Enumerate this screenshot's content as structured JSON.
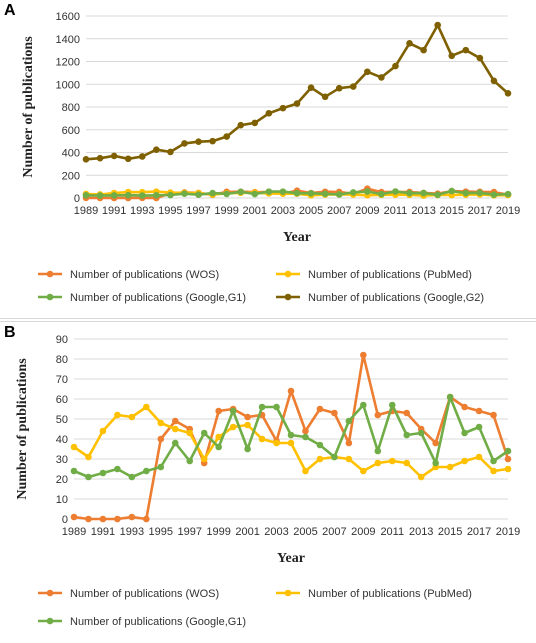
{
  "panels": [
    {
      "letter": "A",
      "chart_data": {
        "type": "line",
        "title": "",
        "xlabel": "Year",
        "ylabel": "Number of publications",
        "ylim": [
          0,
          1600
        ],
        "yticks": [
          0,
          200,
          400,
          600,
          800,
          1000,
          1200,
          1400,
          1600
        ],
        "xtick_labels": [
          "1989",
          "1991",
          "1993",
          "1995",
          "1997",
          "1999",
          "2001",
          "2003",
          "2005",
          "2007",
          "2009",
          "2011",
          "2013",
          "2015",
          "2017",
          "2019"
        ],
        "grid": "horizontal",
        "legend_position": "bottom",
        "x": [
          1989,
          1990,
          1991,
          1992,
          1993,
          1994,
          1995,
          1996,
          1997,
          1998,
          1999,
          2000,
          2001,
          2002,
          2003,
          2004,
          2005,
          2006,
          2007,
          2008,
          2009,
          2010,
          2011,
          2012,
          2013,
          2014,
          2015,
          2016,
          2017,
          2018,
          2019
        ],
        "series": [
          {
            "name": "Number of publications (WOS)",
            "color": "#ed7d31",
            "values": [
              1,
              0,
              0,
              0,
              1,
              0,
              40,
              49,
              45,
              28,
              54,
              55,
              51,
              52,
              39,
              64,
              44,
              55,
              53,
              38,
              82,
              52,
              54,
              53,
              45,
              38,
              61,
              56,
              54,
              52,
              30
            ]
          },
          {
            "name": "Number of publications (PubMed)",
            "color": "#ffc000",
            "values": [
              36,
              31,
              44,
              52,
              51,
              56,
              48,
              45,
              43,
              30,
              41,
              46,
              47,
              40,
              38,
              38,
              24,
              30,
              31,
              30,
              24,
              28,
              29,
              28,
              21,
              26,
              26,
              29,
              31,
              24,
              25
            ]
          },
          {
            "name": "Number of publications (Google,G1)",
            "color": "#70ad47",
            "values": [
              24,
              21,
              23,
              25,
              21,
              24,
              26,
              38,
              29,
              43,
              36,
              54,
              35,
              56,
              56,
              42,
              41,
              37,
              31,
              49,
              57,
              34,
              57,
              42,
              43,
              28,
              61,
              43,
              46,
              29,
              34
            ]
          },
          {
            "name": "Number of publications (Google,G2)",
            "color": "#7f6000",
            "values": [
              340,
              350,
              370,
              345,
              365,
              425,
              405,
              480,
              495,
              500,
              540,
              640,
              660,
              745,
              790,
              830,
              970,
              890,
              965,
              980,
              1110,
              1060,
              1160,
              1360,
              1300,
              1520,
              1250,
              1300,
              1230,
              1030,
              920
            ]
          }
        ]
      }
    },
    {
      "letter": "B",
      "chart_data": {
        "type": "line",
        "title": "",
        "xlabel": "Year",
        "ylabel": "Number of publications",
        "ylim": [
          0,
          90
        ],
        "yticks": [
          0,
          10,
          20,
          30,
          40,
          50,
          60,
          70,
          80,
          90
        ],
        "xtick_labels": [
          "1989",
          "1991",
          "1993",
          "1995",
          "1997",
          "1999",
          "2001",
          "2003",
          "2005",
          "2007",
          "2009",
          "2011",
          "2013",
          "2015",
          "2017",
          "2019"
        ],
        "grid": "horizontal",
        "legend_position": "bottom",
        "x": [
          1989,
          1990,
          1991,
          1992,
          1993,
          1994,
          1995,
          1996,
          1997,
          1998,
          1999,
          2000,
          2001,
          2002,
          2003,
          2004,
          2005,
          2006,
          2007,
          2008,
          2009,
          2010,
          2011,
          2012,
          2013,
          2014,
          2015,
          2016,
          2017,
          2018,
          2019
        ],
        "series": [
          {
            "name": "Number of publications (WOS)",
            "color": "#ed7d31",
            "values": [
              1,
              0,
              0,
              0,
              1,
              0,
              40,
              49,
              45,
              28,
              54,
              55,
              51,
              52,
              39,
              64,
              44,
              55,
              53,
              38,
              82,
              52,
              54,
              53,
              45,
              38,
              61,
              56,
              54,
              52,
              30
            ]
          },
          {
            "name": "Number of publications (PubMed)",
            "color": "#ffc000",
            "values": [
              36,
              31,
              44,
              52,
              51,
              56,
              48,
              45,
              43,
              30,
              41,
              46,
              47,
              40,
              38,
              38,
              24,
              30,
              31,
              30,
              24,
              28,
              29,
              28,
              21,
              26,
              26,
              29,
              31,
              24,
              25
            ]
          },
          {
            "name": "Number of publications (Google,G1)",
            "color": "#70ad47",
            "values": [
              24,
              21,
              23,
              25,
              21,
              24,
              26,
              38,
              29,
              43,
              36,
              54,
              35,
              56,
              56,
              42,
              41,
              37,
              31,
              49,
              57,
              34,
              57,
              42,
              43,
              28,
              61,
              43,
              46,
              29,
              34
            ]
          }
        ]
      }
    }
  ]
}
